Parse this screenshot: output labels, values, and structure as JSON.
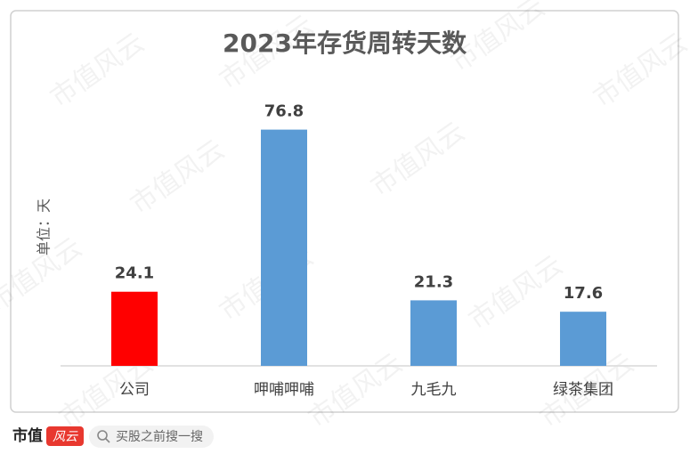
{
  "chart_data": {
    "type": "bar",
    "title": "2023年存货周转天数",
    "y_label": "单位：天",
    "categories": [
      "公司",
      "呷哺呷哺",
      "九毛九",
      "绿茶集团"
    ],
    "values": [
      24.1,
      76.8,
      21.3,
      17.6
    ],
    "colors": [
      "#ff0000",
      "#5b9bd5",
      "#5b9bd5",
      "#5b9bd5"
    ],
    "ylim": [
      0,
      90
    ],
    "grid": false
  },
  "watermark": "市值风云",
  "footer": {
    "brand": "市值",
    "logo": "风云",
    "search": "买股之前搜一搜"
  }
}
